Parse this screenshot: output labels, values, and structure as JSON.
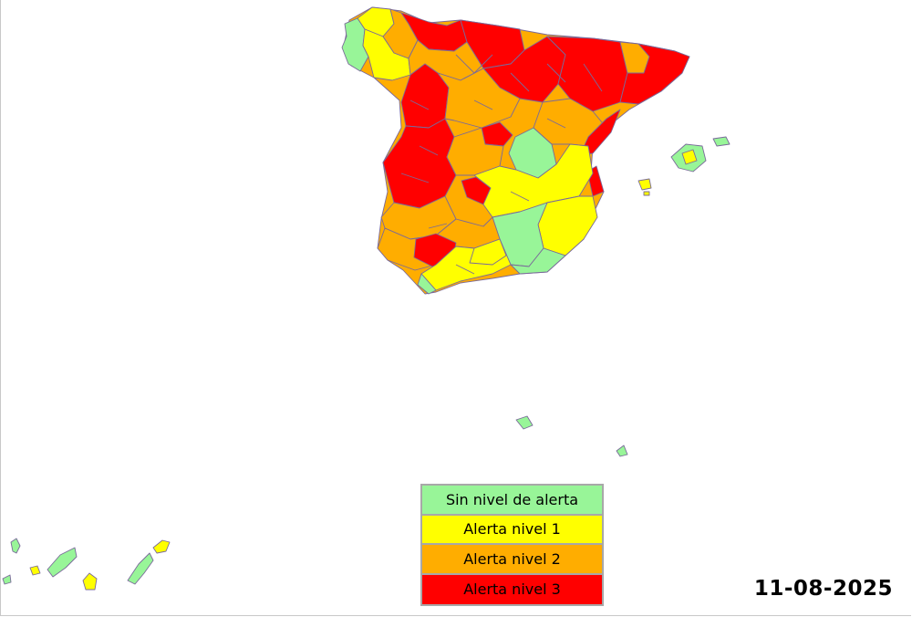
{
  "map": {
    "date": "11-08-2025",
    "legend": [
      {
        "level": 0,
        "label": "Sin nivel de alerta",
        "color": "#98f598"
      },
      {
        "level": 1,
        "label": "Alerta nivel 1",
        "color": "#ffff00"
      },
      {
        "level": 2,
        "label": "Alerta nivel 2",
        "color": "#ffad00"
      },
      {
        "level": 3,
        "label": "Alerta nivel 3",
        "color": "#ff0000"
      }
    ],
    "regions": [
      {
        "name": "galicia-west",
        "level": 0
      },
      {
        "name": "galicia-north",
        "level": 1
      },
      {
        "name": "galicia-inland",
        "level": 1
      },
      {
        "name": "asturias",
        "level": 2
      },
      {
        "name": "cantabria",
        "level": 3
      },
      {
        "name": "basque-country",
        "level": 3
      },
      {
        "name": "navarra-rioja",
        "level": 3
      },
      {
        "name": "pyrenees-aragon",
        "level": 3
      },
      {
        "name": "catalonia-north",
        "level": 2
      },
      {
        "name": "catalonia-coast",
        "level": 3
      },
      {
        "name": "leon",
        "level": 2
      },
      {
        "name": "castilla-leon-west",
        "level": 3
      },
      {
        "name": "castilla-leon-central",
        "level": 2
      },
      {
        "name": "extremadura-north",
        "level": 3
      },
      {
        "name": "extremadura-south",
        "level": 2
      },
      {
        "name": "madrid-avila",
        "level": 2
      },
      {
        "name": "toledo-spot",
        "level": 3
      },
      {
        "name": "valladolid-spot",
        "level": 3
      },
      {
        "name": "cuenca",
        "level": 0
      },
      {
        "name": "teruel-castellon",
        "level": 2
      },
      {
        "name": "valencia-coast",
        "level": 3
      },
      {
        "name": "la-mancha",
        "level": 1
      },
      {
        "name": "albacete-murcia",
        "level": 1
      },
      {
        "name": "jaen-granada",
        "level": 0
      },
      {
        "name": "andalucia-west",
        "level": 2
      },
      {
        "name": "cordoba",
        "level": 3
      },
      {
        "name": "sevilla-cadiz",
        "level": 1
      },
      {
        "name": "malaga-coast",
        "level": 0
      },
      {
        "name": "almeria",
        "level": 0
      },
      {
        "name": "mallorca",
        "level": 0
      },
      {
        "name": "menorca",
        "level": 0
      },
      {
        "name": "ibiza",
        "level": 1
      },
      {
        "name": "ceuta",
        "level": 0
      },
      {
        "name": "melilla",
        "level": 0
      },
      {
        "name": "la-palma",
        "level": 0
      },
      {
        "name": "el-hierro",
        "level": 0
      },
      {
        "name": "la-gomera",
        "level": 1
      },
      {
        "name": "tenerife",
        "level": 0
      },
      {
        "name": "gran-canaria",
        "level": 1
      },
      {
        "name": "fuerteventura",
        "level": 0
      },
      {
        "name": "lanzarote",
        "level": 1
      }
    ]
  }
}
